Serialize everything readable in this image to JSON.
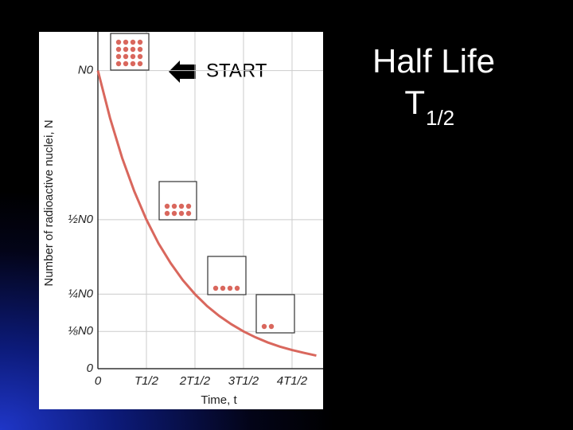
{
  "chart_data": {
    "type": "line",
    "title": "Half Life",
    "symbol": "T",
    "symbol_subscript": "1/2",
    "annotation": "START",
    "x_label": "Time, t",
    "y_label": "Number of radioactive nuclei, N",
    "x": [
      0,
      0.25,
      0.5,
      0.75,
      1,
      1.25,
      1.5,
      1.75,
      2,
      2.25,
      2.5,
      2.75,
      3,
      3.25,
      3.5,
      3.75,
      4,
      4.25,
      4.5
    ],
    "values": [
      1,
      0.841,
      0.707,
      0.595,
      0.5,
      0.42,
      0.354,
      0.297,
      0.25,
      0.21,
      0.177,
      0.149,
      0.125,
      0.105,
      0.088,
      0.074,
      0.0625,
      0.053,
      0.044
    ],
    "color": "#d9675d",
    "xlim": [
      0,
      4.64
    ],
    "ylim": [
      0,
      1.13
    ],
    "xticks": [
      0,
      {
        "value": 1,
        "label": "T1/2"
      },
      {
        "value": 2,
        "label": "2T1/2"
      },
      {
        "value": 3,
        "label": "3T1/2"
      },
      {
        "value": 4,
        "label": "4T1/2"
      }
    ],
    "yticks": [
      0,
      {
        "value": 0.125,
        "label": "⅛N0"
      },
      {
        "value": 0.25,
        "label": "¼N0"
      },
      {
        "value": 0.5,
        "label": "½N0"
      },
      {
        "value": 1,
        "label": "N0"
      }
    ],
    "grid": true
  }
}
